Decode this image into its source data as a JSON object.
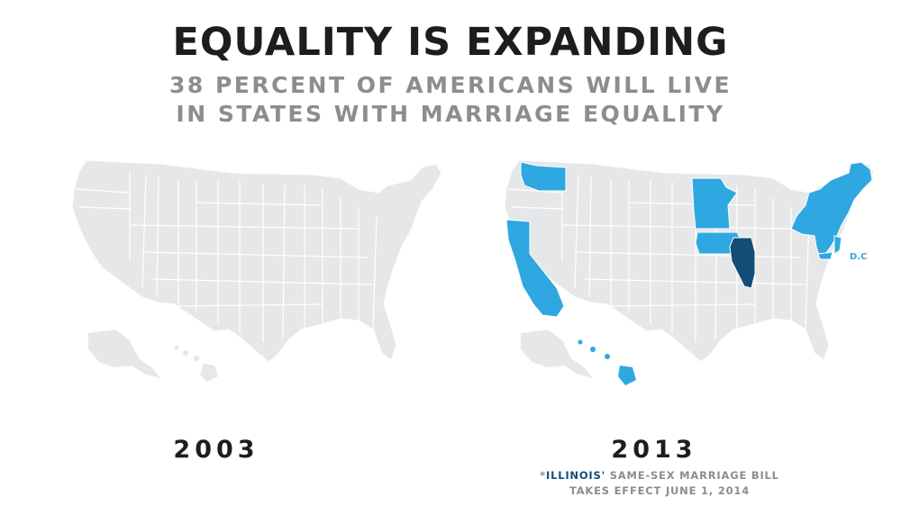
{
  "title": "EQUALITY IS EXPANDING",
  "subtitle_line1": "38 PERCENT OF AMERICANS WILL LIVE",
  "subtitle_line2": "IN STATES WITH MARRIAGE EQUALITY",
  "maps": [
    {
      "year": "2003",
      "equality_states": []
    },
    {
      "year": "2013",
      "equality_states": [
        "Washington",
        "California",
        "Minnesota",
        "Iowa",
        "New York",
        "Vermont",
        "New Hampshire",
        "Maine",
        "Massachusetts",
        "Rhode Island",
        "Connecticut",
        "New Jersey",
        "Delaware",
        "Maryland",
        "Hawaii",
        "D.C."
      ],
      "pending_states": [
        "Illinois"
      ],
      "dc_label": "D.C"
    }
  ],
  "footnote": {
    "star": "*",
    "state": "ILLINOIS'",
    "line1_rest": " SAME-SEX MARRIAGE BILL",
    "line2": "TAKES EFFECT JUNE 1, 2014"
  },
  "colors": {
    "base_state": "#e6e7e8",
    "state_border": "#ffffff",
    "equality": "#2fa8e2",
    "pending": "#134d78",
    "title": "#1d1d1f",
    "subtitle": "#8d8d8d"
  }
}
